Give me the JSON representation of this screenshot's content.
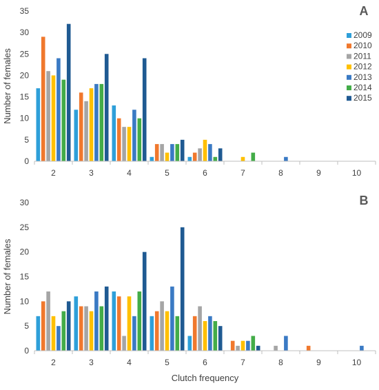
{
  "chart_data": [
    {
      "type": "bar",
      "panel_label": "A",
      "ylabel": "Number of females",
      "xlabel": "",
      "ylim": [
        0,
        35
      ],
      "yticks": [
        0,
        5,
        10,
        15,
        20,
        25,
        30,
        35
      ],
      "categories": [
        "2",
        "3",
        "4",
        "5",
        "6",
        "7",
        "8",
        "9",
        "10"
      ],
      "legend_position": "right",
      "grid": false,
      "series": [
        {
          "name": "2009",
          "color": "#2e9fd9",
          "values": [
            17,
            12,
            13,
            1,
            1,
            0,
            0,
            0,
            0
          ]
        },
        {
          "name": "2010",
          "color": "#f0782d",
          "values": [
            29,
            16,
            10,
            4,
            2,
            0,
            0,
            0,
            0
          ]
        },
        {
          "name": "2011",
          "color": "#a5a5a5",
          "values": [
            21,
            14,
            8,
            4,
            3,
            0,
            0,
            0,
            0
          ]
        },
        {
          "name": "2012",
          "color": "#ffc000",
          "values": [
            20,
            17,
            8,
            2,
            5,
            1,
            0,
            0,
            0
          ]
        },
        {
          "name": "2013",
          "color": "#3a7ac4",
          "values": [
            24,
            18,
            12,
            4,
            4,
            0,
            1,
            0,
            0
          ]
        },
        {
          "name": "2014",
          "color": "#43ac48",
          "values": [
            19,
            18,
            10,
            4,
            1,
            2,
            0,
            0,
            0
          ]
        },
        {
          "name": "2015",
          "color": "#1f5a92",
          "values": [
            32,
            25,
            24,
            5,
            3,
            0,
            0,
            0,
            0
          ]
        }
      ]
    },
    {
      "type": "bar",
      "panel_label": "B",
      "ylabel": "Number of females",
      "xlabel": "Clutch frequency",
      "ylim": [
        0,
        30
      ],
      "yticks": [
        0,
        5,
        10,
        15,
        20,
        25,
        30
      ],
      "categories": [
        "2",
        "3",
        "4",
        "5",
        "6",
        "7",
        "8",
        "9",
        "10"
      ],
      "grid": false,
      "series": [
        {
          "name": "2009",
          "color": "#2e9fd9",
          "values": [
            7,
            11,
            12,
            7,
            3,
            0,
            0,
            0,
            0
          ]
        },
        {
          "name": "2010",
          "color": "#f0782d",
          "values": [
            10,
            9,
            11,
            8,
            7,
            2,
            0,
            1,
            0
          ]
        },
        {
          "name": "2011",
          "color": "#a5a5a5",
          "values": [
            12,
            9,
            3,
            10,
            9,
            1,
            1,
            0,
            0
          ]
        },
        {
          "name": "2012",
          "color": "#ffc000",
          "values": [
            7,
            8,
            11,
            8,
            6,
            2,
            0,
            0,
            0
          ]
        },
        {
          "name": "2013",
          "color": "#3a7ac4",
          "values": [
            5,
            12,
            7,
            13,
            7,
            2,
            3,
            0,
            1
          ]
        },
        {
          "name": "2014",
          "color": "#43ac48",
          "values": [
            8,
            9,
            12,
            7,
            6,
            3,
            0,
            0,
            0
          ]
        },
        {
          "name": "2015",
          "color": "#1f5a92",
          "values": [
            10,
            13,
            20,
            25,
            5,
            1,
            0,
            0,
            0
          ]
        }
      ]
    }
  ]
}
